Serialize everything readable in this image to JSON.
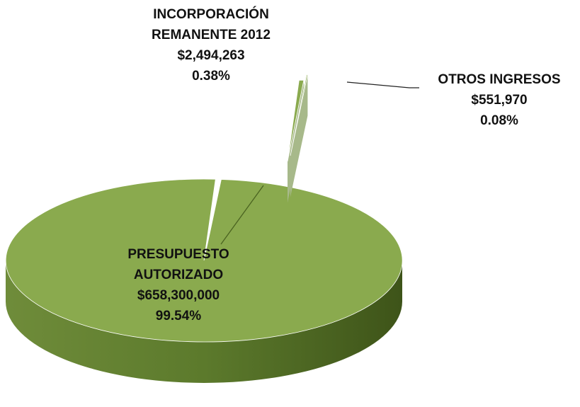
{
  "chart_data": {
    "type": "pie3d",
    "categories": [
      "PRESUPUESTO AUTORIZADO",
      "INCORPORACIÓN REMANENTE 2012",
      "OTROS INGRESOS"
    ],
    "values": [
      658300000,
      2494263,
      551970
    ],
    "value_labels": [
      "$658,300,000",
      "$2,494,263",
      "$551,970"
    ],
    "percent_labels": [
      "99.54%",
      "0.38%",
      "0.08%"
    ],
    "colors": [
      "#8aaa4e",
      "#8aaa4e",
      "#8aaa4e"
    ]
  }
}
